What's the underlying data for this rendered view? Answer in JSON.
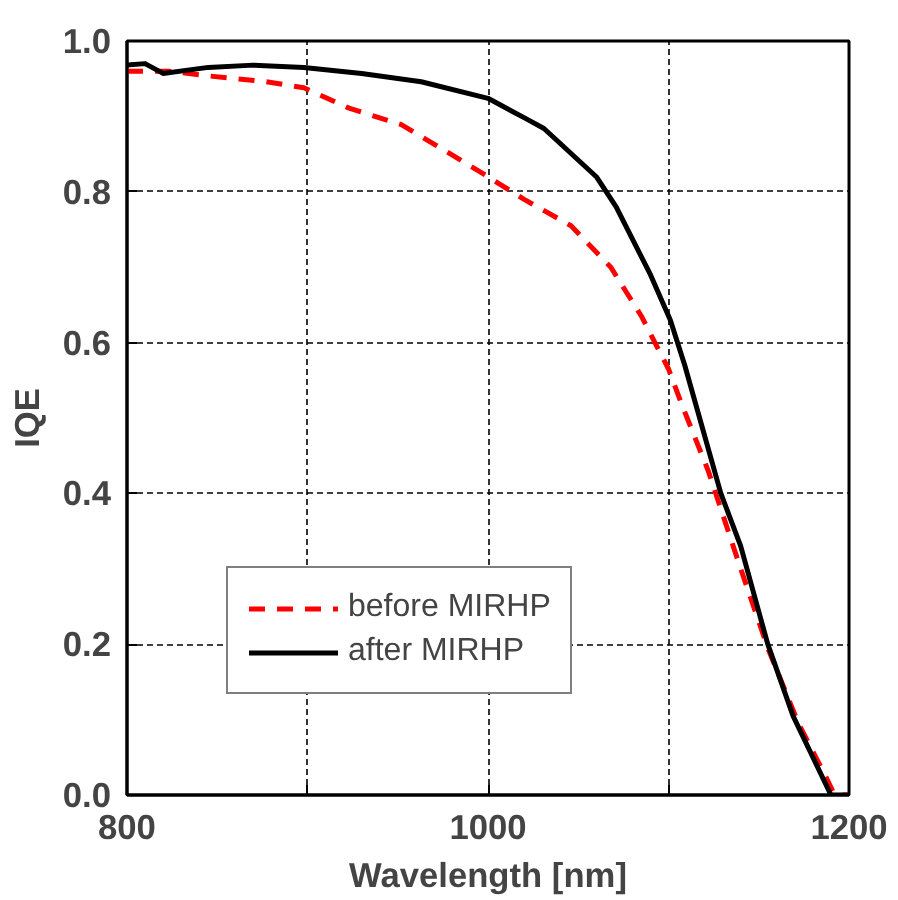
{
  "chart_data": {
    "type": "line",
    "xlabel": "Wavelength [nm]",
    "ylabel": "IQE",
    "xlim": [
      800,
      1200
    ],
    "ylim": [
      0.0,
      1.0
    ],
    "xticks": [
      800,
      {
        "value": 900,
        "label": null
      },
      1000,
      {
        "value": 1100,
        "label": null
      },
      1200
    ],
    "yticks": [
      {
        "value": 0,
        "label": "0.0"
      },
      0.2,
      0.4,
      0.6,
      0.8,
      {
        "value": 1,
        "label": "1.0"
      }
    ],
    "grid": true,
    "legend": "bottom left",
    "series": [
      {
        "name": "before MIRHP",
        "color": "#ff0000",
        "line_style": "dashed",
        "x": [
          800,
          823,
          844,
          877,
          898,
          923,
          952,
          971,
          1000,
          1020,
          1046,
          1068,
          1085,
          1100,
          1107,
          1122,
          1140,
          1155,
          1172,
          1187,
          1192,
          1200
        ],
        "values": [
          0.96,
          0.96,
          0.954,
          0.946,
          0.938,
          0.911,
          0.889,
          0.862,
          0.82,
          0.79,
          0.755,
          0.7,
          0.635,
          0.565,
          0.52,
          0.43,
          0.3,
          0.195,
          0.095,
          0.025,
          0.0,
          0.0
        ]
      },
      {
        "name": "after MIRHP",
        "color": "#000000",
        "line_style": "solid",
        "x": [
          800,
          810,
          820,
          845,
          870,
          898,
          930,
          963,
          1000,
          1021,
          1031,
          1060,
          1071,
          1090,
          1101,
          1109,
          1129,
          1140,
          1155,
          1169,
          1190,
          1200
        ],
        "values": [
          0.968,
          0.97,
          0.957,
          0.965,
          0.968,
          0.965,
          0.957,
          0.946,
          0.924,
          0.897,
          0.884,
          0.82,
          0.78,
          0.69,
          0.63,
          0.57,
          0.4,
          0.33,
          0.2,
          0.105,
          0.0,
          0.0
        ]
      }
    ]
  }
}
